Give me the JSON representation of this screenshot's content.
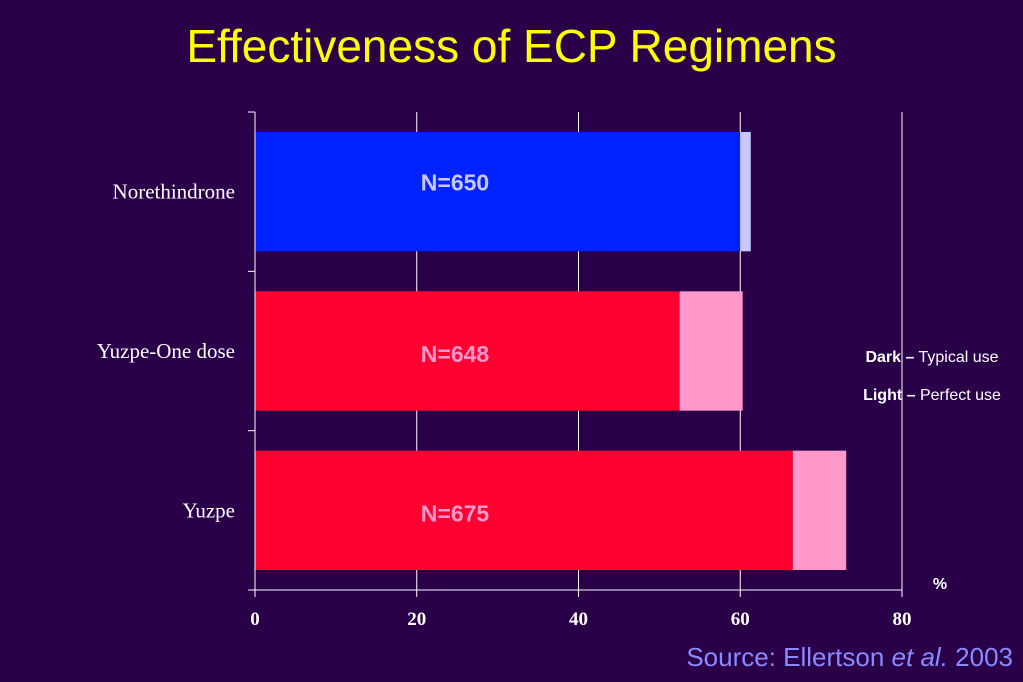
{
  "title": "Effectiveness of ECP Regimens",
  "chart_data": {
    "type": "bar",
    "orientation": "horizontal",
    "stacked": true,
    "categories": [
      "Norethindrone",
      "Yuzpe-One dose",
      "Yuzpe"
    ],
    "series": [
      {
        "values": [
          60,
          52.5,
          66.5
        ],
        "colors": [
          "#0022ff",
          "#ff0030",
          "#ff0030"
        ]
      },
      {
        "values": [
          1.3,
          7.8,
          6.6
        ],
        "colors": [
          "#c8c8ff",
          "#ff99cc",
          "#ff99cc"
        ]
      }
    ],
    "bar_annotations": [
      "N=650",
      "N=648",
      "N=675"
    ],
    "annotation_colors": [
      "#c8c8ff",
      "#ff99cc",
      "#ff99cc"
    ],
    "x_ticks": [
      0,
      20,
      40,
      60,
      80
    ],
    "xlim": [
      0,
      80
    ],
    "xlabel": "%",
    "grid": true,
    "legend_position": "right"
  },
  "legend": {
    "dark_key": "Dark –",
    "dark_text": "Typical use",
    "light_key": "Light –",
    "light_text": "Perfect use"
  },
  "source": {
    "prefix": "Source: Ellertson ",
    "italic": "et al.",
    "year": " 2003"
  }
}
